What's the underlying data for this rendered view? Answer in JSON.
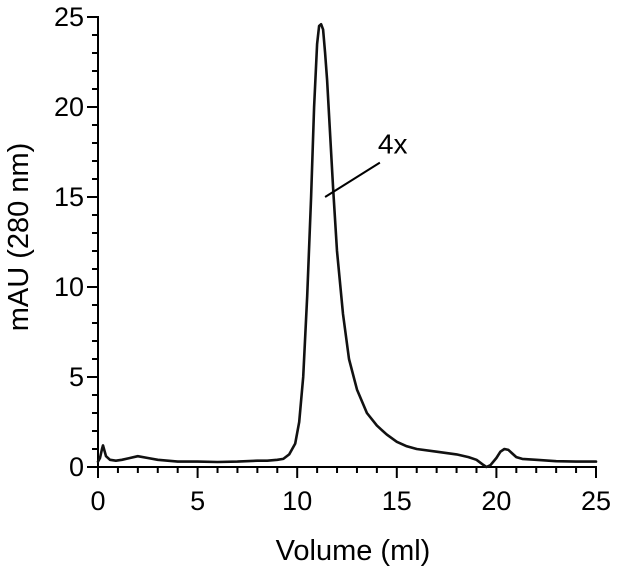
{
  "chart_data": {
    "type": "line",
    "title": "",
    "xlabel": "Volume (ml)",
    "ylabel": "mAU (280 nm)",
    "xlim": [
      0,
      25
    ],
    "ylim": [
      0,
      25
    ],
    "x_ticks": [
      0,
      5,
      10,
      15,
      20,
      25
    ],
    "y_ticks": [
      0,
      5,
      10,
      15,
      20,
      25
    ],
    "grid": false,
    "legend": "none",
    "line_color": "#111111",
    "series": [
      {
        "x": [
          0,
          0.1,
          0.2,
          0.25,
          0.3,
          0.4,
          0.6,
          0.9,
          1.2,
          1.6,
          2.0,
          2.5,
          3.0,
          4.0,
          5.0,
          6.0,
          7.0,
          8.0,
          8.5,
          9.0,
          9.3,
          9.6,
          9.9,
          10.1,
          10.3,
          10.5,
          10.7,
          10.85,
          11.0,
          11.1,
          11.2,
          11.3,
          11.4,
          11.5,
          11.6,
          11.8,
          12.0,
          12.3,
          12.6,
          13.0,
          13.5,
          14.0,
          14.5,
          15.0,
          15.5,
          16.0,
          17.0,
          18.0,
          18.6,
          19.0,
          19.3,
          19.5,
          19.7,
          20.0,
          20.2,
          20.4,
          20.6,
          20.8,
          21.0,
          21.3,
          22.0,
          23.0,
          24.0,
          25.0
        ],
        "values": [
          0.3,
          0.5,
          1.0,
          1.2,
          1.0,
          0.6,
          0.4,
          0.35,
          0.4,
          0.5,
          0.6,
          0.5,
          0.4,
          0.3,
          0.3,
          0.28,
          0.3,
          0.35,
          0.35,
          0.4,
          0.45,
          0.7,
          1.3,
          2.5,
          5.0,
          9.5,
          15.0,
          20.0,
          23.5,
          24.5,
          24.6,
          24.3,
          23.0,
          21.5,
          19.5,
          15.5,
          12.0,
          8.5,
          6.0,
          4.3,
          3.0,
          2.3,
          1.8,
          1.4,
          1.15,
          1.0,
          0.85,
          0.7,
          0.55,
          0.4,
          0.15,
          0.0,
          0.1,
          0.5,
          0.85,
          1.0,
          0.95,
          0.75,
          0.55,
          0.45,
          0.4,
          0.32,
          0.3,
          0.3
        ]
      }
    ],
    "annotations": [
      {
        "text": "4x",
        "point": [
          11.55,
          15.0
        ],
        "label_at": [
          14.0,
          16.8
        ]
      }
    ]
  }
}
